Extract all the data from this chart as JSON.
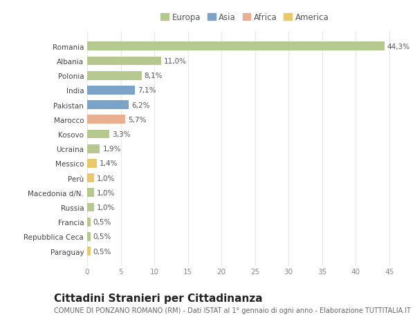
{
  "countries": [
    "Romania",
    "Albania",
    "Polonia",
    "India",
    "Pakistan",
    "Marocco",
    "Kosovo",
    "Ucraina",
    "Messico",
    "Perù",
    "Macedonia d/N.",
    "Russia",
    "Francia",
    "Repubblica Ceca",
    "Paraguay"
  ],
  "values": [
    44.3,
    11.0,
    8.1,
    7.1,
    6.2,
    5.7,
    3.3,
    1.9,
    1.4,
    1.0,
    1.0,
    1.0,
    0.5,
    0.5,
    0.5
  ],
  "labels": [
    "44,3%",
    "11,0%",
    "8,1%",
    "7,1%",
    "6,2%",
    "5,7%",
    "3,3%",
    "1,9%",
    "1,4%",
    "1,0%",
    "1,0%",
    "1,0%",
    "0,5%",
    "0,5%",
    "0,5%"
  ],
  "colors": [
    "#b5c98e",
    "#b5c98e",
    "#b5c98e",
    "#7ba3c8",
    "#7ba3c8",
    "#e8b090",
    "#b5c98e",
    "#b5c98e",
    "#e8c86a",
    "#e8c86a",
    "#b5c98e",
    "#b5c98e",
    "#b5c98e",
    "#b5c98e",
    "#e8c86a"
  ],
  "legend": [
    {
      "label": "Europa",
      "color": "#b5c98e"
    },
    {
      "label": "Asia",
      "color": "#7ba3c8"
    },
    {
      "label": "Africa",
      "color": "#e8b090"
    },
    {
      "label": "America",
      "color": "#e8c86a"
    }
  ],
  "xlim": [
    0,
    47
  ],
  "xticks": [
    0,
    5,
    10,
    15,
    20,
    25,
    30,
    35,
    40,
    45
  ],
  "title": "Cittadini Stranieri per Cittadinanza",
  "subtitle": "COMUNE DI PONZANO ROMANO (RM) - Dati ISTAT al 1° gennaio di ogni anno - Elaborazione TUTTITALIA.IT",
  "bg_color": "#ffffff",
  "grid_color": "#e8e8e8",
  "bar_height": 0.6,
  "label_fontsize": 7.5,
  "tick_fontsize": 7.5,
  "title_fontsize": 11,
  "subtitle_fontsize": 7.0
}
